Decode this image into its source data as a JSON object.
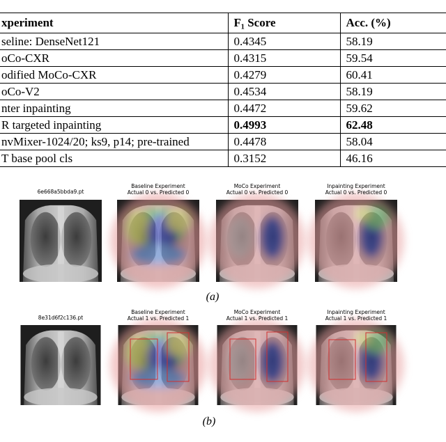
{
  "table": {
    "header": [
      "xperiment",
      "F₁ Score",
      "Acc. (%)"
    ],
    "rows": [
      [
        "seline: DenseNet121",
        "0.4345",
        "58.19"
      ],
      [
        "oCo-CXR",
        "0.4315",
        "59.54"
      ],
      [
        "odified MoCo-CXR",
        "0.4279",
        "60.41"
      ],
      [
        "oCo-V2",
        "0.4534",
        "58.19"
      ],
      [
        "nter inpainting",
        "0.4472",
        "59.62"
      ],
      [
        "R targeted inpainting",
        "0.4993",
        "62.48"
      ],
      [
        "nvMixer-1024/20; ks9, p14; pre-trained",
        "0.4478",
        "58.04"
      ],
      [
        "T base pool cls",
        "0.3152",
        "46.16"
      ]
    ]
  },
  "figure": {
    "a": {
      "titles": [
        [
          "6e668a5bbda9.pt"
        ],
        [
          "Baseline Experiment",
          "Actual 0 vs. Predicted 0"
        ],
        [
          "MoCo Experiment",
          "Actual 0 vs. Predicted 0"
        ],
        [
          "Inpainting Experiment",
          "Actual 0 vs. Predicted 0"
        ]
      ],
      "caption": "(a)"
    },
    "b": {
      "titles": [
        [
          "8e31d6f2c136.pt"
        ],
        [
          "Baseline Experiment",
          "Actual 1 vs. Predicted 1"
        ],
        [
          "MoCo Experiment",
          "Actual 1 vs. Predicted 1"
        ],
        [
          "Inpainting Experiment",
          "Actual 1 vs. Predicted 1"
        ]
      ],
      "caption": "(b)"
    }
  }
}
